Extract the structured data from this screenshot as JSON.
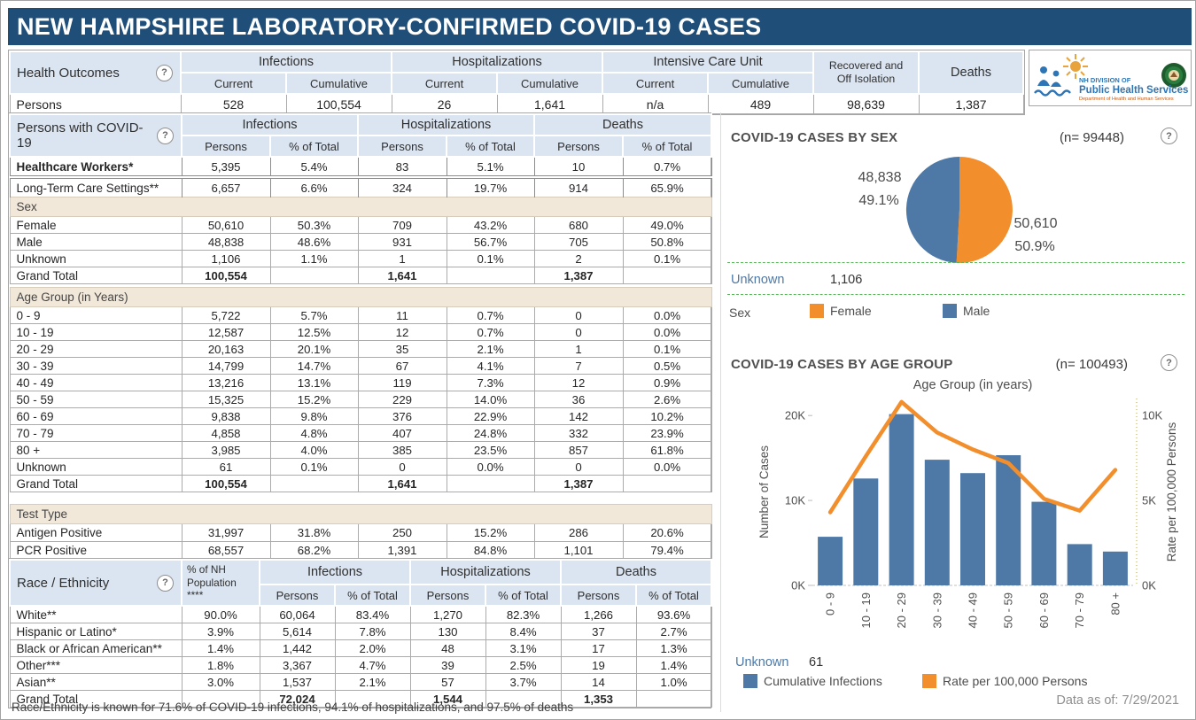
{
  "title": "NEW HAMPSHIRE LABORATORY-CONFIRMED COVID-19 CASES",
  "colors": {
    "title_bar": "#1f4e79",
    "header_blue": "#dbe5f1",
    "section_tan": "#f2e8da",
    "bar_blue": "#4e79a7",
    "accent_orange": "#f28e2b",
    "link_blue": "#4e79a7"
  },
  "logo": {
    "org": "NH DIVISION OF",
    "name": "Public Health Services",
    "dept": "Department of Health and Human Services"
  },
  "health_outcomes": {
    "label": "Health Outcomes",
    "groups": [
      {
        "label": "Infections",
        "cols": [
          "Current",
          "Cumulative"
        ]
      },
      {
        "label": "Hospitalizations",
        "cols": [
          "Current",
          "Cumulative"
        ]
      },
      {
        "label": "Intensive Care Unit",
        "cols": [
          "Current",
          "Cumulative"
        ]
      },
      {
        "label": "Recovered and\nOff Isolation",
        "cols": []
      },
      {
        "label": "Deaths",
        "cols": []
      }
    ],
    "row_label": "Persons",
    "values": [
      "528",
      "100,554",
      "26",
      "1,641",
      "n/a",
      "489",
      "98,639",
      "1,387"
    ]
  },
  "persons_table": {
    "label": "Persons with COVID-19",
    "groups": [
      "Infections",
      "Hospitalizations",
      "Deaths"
    ],
    "subcols": [
      "Persons",
      "% of Total"
    ],
    "top_rows": [
      {
        "label": "Healthcare Workers*",
        "bold": true,
        "values": [
          "5,395",
          "5.4%",
          "83",
          "5.1%",
          "10",
          "0.7%"
        ]
      },
      {
        "label": "Long-Term Care Settings**",
        "bold": false,
        "values": [
          "6,657",
          "6.6%",
          "324",
          "19.7%",
          "914",
          "65.9%"
        ]
      }
    ],
    "sections": [
      {
        "title": "Sex",
        "rows": [
          {
            "label": "Female",
            "values": [
              "50,610",
              "50.3%",
              "709",
              "43.2%",
              "680",
              "49.0%"
            ]
          },
          {
            "label": "Male",
            "values": [
              "48,838",
              "48.6%",
              "931",
              "56.7%",
              "705",
              "50.8%"
            ]
          },
          {
            "label": "Unknown",
            "values": [
              "1,106",
              "1.1%",
              "1",
              "0.1%",
              "2",
              "0.1%"
            ]
          },
          {
            "label": "Grand Total",
            "values": [
              "100,554",
              "",
              "1,641",
              "",
              "1,387",
              ""
            ]
          }
        ]
      },
      {
        "title": "Age Group (in Years)",
        "rows": [
          {
            "label": "0 - 9",
            "values": [
              "5,722",
              "5.7%",
              "11",
              "0.7%",
              "0",
              "0.0%"
            ]
          },
          {
            "label": "10 - 19",
            "values": [
              "12,587",
              "12.5%",
              "12",
              "0.7%",
              "0",
              "0.0%"
            ]
          },
          {
            "label": "20 - 29",
            "values": [
              "20,163",
              "20.1%",
              "35",
              "2.1%",
              "1",
              "0.1%"
            ]
          },
          {
            "label": "30 - 39",
            "values": [
              "14,799",
              "14.7%",
              "67",
              "4.1%",
              "7",
              "0.5%"
            ]
          },
          {
            "label": "40 - 49",
            "values": [
              "13,216",
              "13.1%",
              "119",
              "7.3%",
              "12",
              "0.9%"
            ]
          },
          {
            "label": "50 - 59",
            "values": [
              "15,325",
              "15.2%",
              "229",
              "14.0%",
              "36",
              "2.6%"
            ]
          },
          {
            "label": "60 - 69",
            "values": [
              "9,838",
              "9.8%",
              "376",
              "22.9%",
              "142",
              "10.2%"
            ]
          },
          {
            "label": "70 - 79",
            "values": [
              "4,858",
              "4.8%",
              "407",
              "24.8%",
              "332",
              "23.9%"
            ]
          },
          {
            "label": "80 +",
            "values": [
              "3,985",
              "4.0%",
              "385",
              "23.5%",
              "857",
              "61.8%"
            ]
          },
          {
            "label": "Unknown",
            "values": [
              "61",
              "0.1%",
              "0",
              "0.0%",
              "0",
              "0.0%"
            ]
          },
          {
            "label": "Grand Total",
            "values": [
              "100,554",
              "",
              "1,641",
              "",
              "1,387",
              ""
            ]
          }
        ]
      },
      {
        "title": "Test Type",
        "rows": [
          {
            "label": "Antigen Positive",
            "values": [
              "31,997",
              "31.8%",
              "250",
              "15.2%",
              "286",
              "20.6%"
            ]
          },
          {
            "label": "PCR Positive",
            "values": [
              "68,557",
              "68.2%",
              "1,391",
              "84.8%",
              "1,101",
              "79.4%"
            ]
          },
          {
            "label": "Grand Total",
            "values": [
              "100,554",
              "",
              "1,641",
              "",
              "1,387",
              ""
            ]
          }
        ]
      }
    ]
  },
  "race_table": {
    "label": "Race / Ethnicity",
    "pop_col": "% of NH\nPopulation\n****",
    "groups": [
      "Infections",
      "Hospitalizations",
      "Deaths"
    ],
    "subcols": [
      "Persons",
      "% of Total"
    ],
    "rows": [
      {
        "label": "White**",
        "values": [
          "90.0%",
          "60,064",
          "83.4%",
          "1,270",
          "82.3%",
          "1,266",
          "93.6%"
        ]
      },
      {
        "label": "Hispanic or Latino*",
        "values": [
          "3.9%",
          "5,614",
          "7.8%",
          "130",
          "8.4%",
          "37",
          "2.7%"
        ]
      },
      {
        "label": "Black or African American**",
        "values": [
          "1.4%",
          "1,442",
          "2.0%",
          "48",
          "3.1%",
          "17",
          "1.3%"
        ]
      },
      {
        "label": "Other***",
        "values": [
          "1.8%",
          "3,367",
          "4.7%",
          "39",
          "2.5%",
          "19",
          "1.4%"
        ]
      },
      {
        "label": "Asian**",
        "values": [
          "3.0%",
          "1,537",
          "2.1%",
          "57",
          "3.7%",
          "14",
          "1.0%"
        ]
      },
      {
        "label": "Grand Total",
        "values": [
          "",
          "72,024",
          "",
          "1,544",
          "",
          "1,353",
          ""
        ]
      }
    ],
    "footnote": "Race/Ethnicity is known for 71.6% of COVID-19 infections, 94.1% of hospitalizations, and 97.5% of deaths"
  },
  "chart_data": [
    {
      "type": "pie",
      "title": "COVID-19 CASES BY SEX",
      "n_label": "(n= 99448)",
      "slices": [
        {
          "label": "Female",
          "value": 50610,
          "pct": "50.9%",
          "color": "#f28e2b"
        },
        {
          "label": "Male",
          "value": 48838,
          "pct": "49.1%",
          "color": "#4e79a7"
        }
      ],
      "callouts": {
        "male_value": "48,838",
        "male_pct": "49.1%",
        "female_value": "50,610",
        "female_pct": "50.9%"
      },
      "unknown_label": "Unknown",
      "unknown_value": "1,106",
      "legend_title": "Sex",
      "legend": [
        {
          "label": "Female",
          "color": "#f28e2b"
        },
        {
          "label": "Male",
          "color": "#4e79a7"
        }
      ]
    },
    {
      "type": "bar+line",
      "title": "COVID-19 CASES BY AGE GROUP",
      "n_label": "(n= 100493)",
      "axis_title": "Age Group (in years)",
      "categories": [
        "0 - 9",
        "10 - 19",
        "20 - 29",
        "30 - 39",
        "40 - 49",
        "50 - 59",
        "60 - 69",
        "70 - 79",
        "80 +"
      ],
      "bars": {
        "name": "Cumulative Infections",
        "color": "#4e79a7",
        "values": [
          5722,
          12587,
          20163,
          14799,
          13216,
          15325,
          9838,
          4858,
          3985
        ]
      },
      "line": {
        "name": "Rate per 100,000 Persons",
        "color": "#f28e2b",
        "values": [
          4300,
          7600,
          10800,
          9000,
          8000,
          7200,
          5100,
          4400,
          6800
        ]
      },
      "left_axis": {
        "label": "Number of Cases",
        "max": 22000,
        "ticks": [
          {
            "label": "0K",
            "value": 0
          },
          {
            "label": "10K",
            "value": 10000
          },
          {
            "label": "20K",
            "value": 20000
          }
        ]
      },
      "right_axis": {
        "label": "Rate per 100,000 Persons",
        "max": 11000,
        "ticks": [
          {
            "label": "0K",
            "value": 0
          },
          {
            "label": "5K",
            "value": 5000
          },
          {
            "label": "10K",
            "value": 10000
          }
        ]
      },
      "unknown_label": "Unknown",
      "unknown_value": "61",
      "legend": [
        {
          "label": "Cumulative Infections",
          "color": "#4e79a7"
        },
        {
          "label": "Rate per 100,000 Persons",
          "color": "#f28e2b"
        }
      ],
      "data_as_of": "Data as of:  7/29/2021"
    }
  ]
}
